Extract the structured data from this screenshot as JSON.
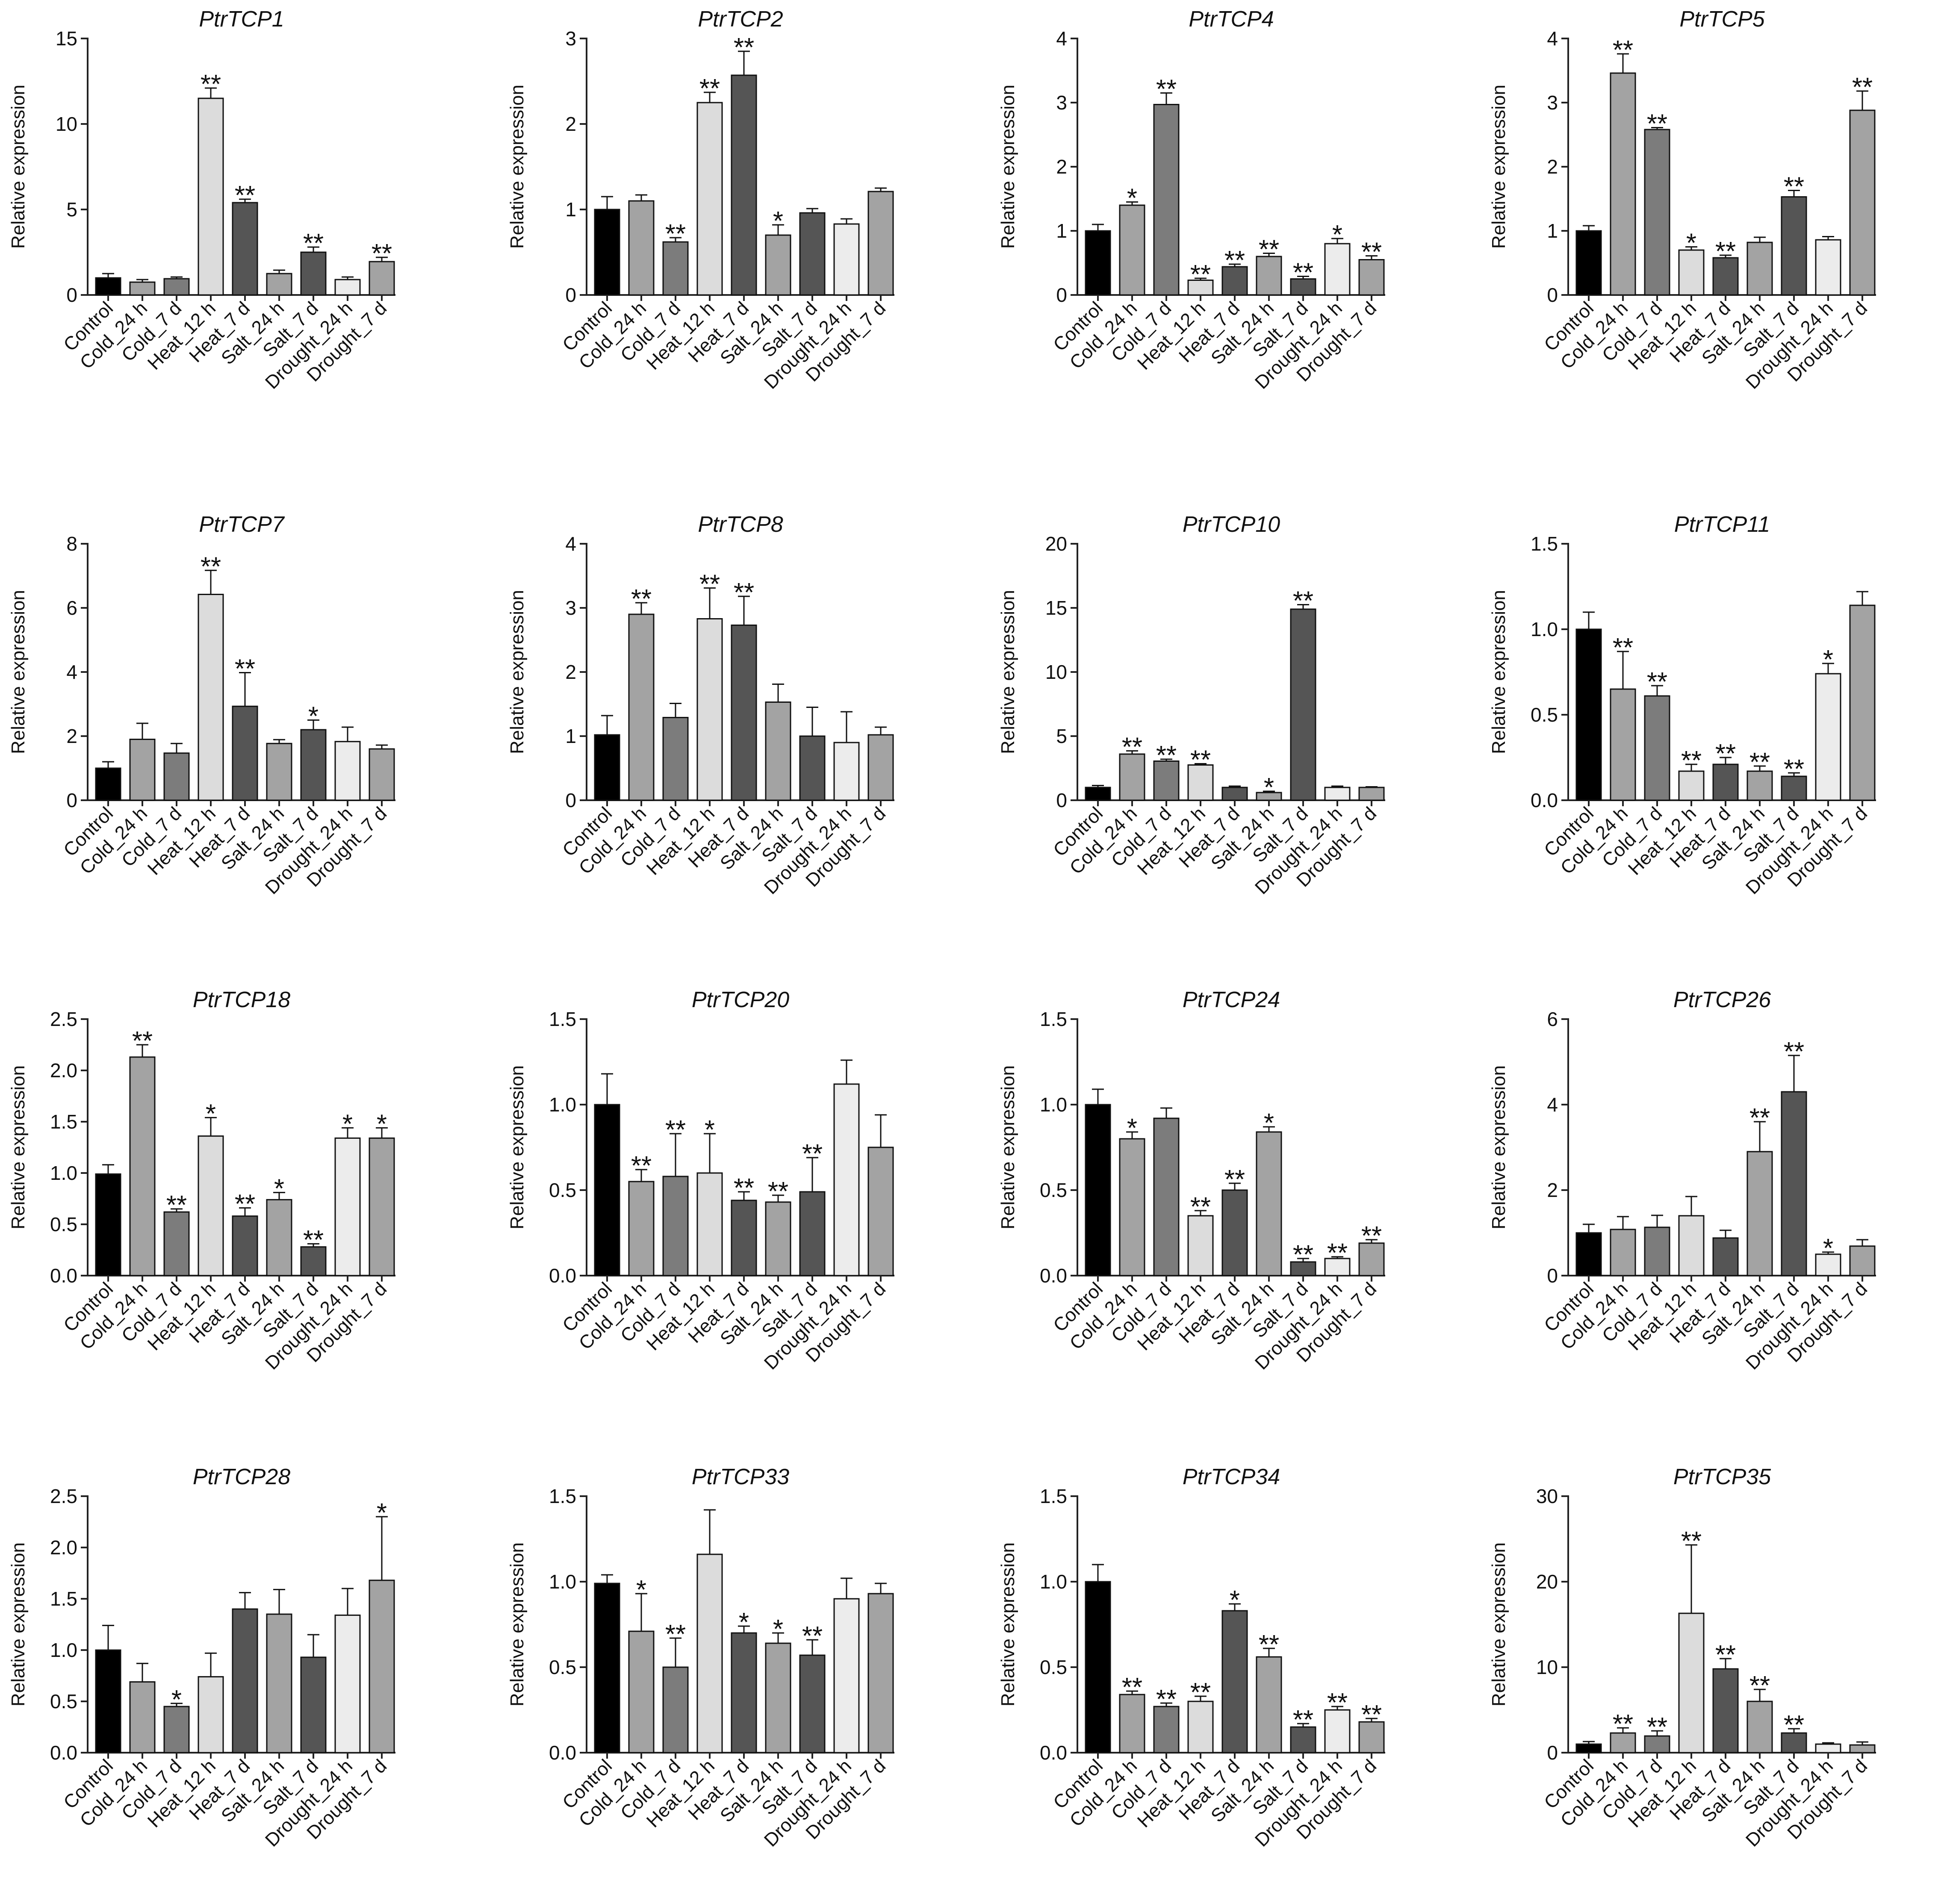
{
  "figure": {
    "ylabel": "Relative expression",
    "categories": [
      "Control",
      "Cold_24 h",
      "Cold_7 d",
      "Heat_12 h",
      "Heat_7 d",
      "Salt_24 h",
      "Salt_7 d",
      "Drought_24 h",
      "Drought_7 d"
    ],
    "bar_colors": [
      "#000000",
      "#a3a3a3",
      "#7c7c7c",
      "#dcdcdc",
      "#555555",
      "#a3a3a3",
      "#555555",
      "#ececec",
      "#a3a3a3"
    ]
  },
  "chart_data": [
    {
      "type": "bar",
      "title": "PtrTCP1",
      "ylabel": "Relative expression",
      "ylim": [
        0,
        15
      ],
      "yticks": [
        0,
        5,
        10,
        15
      ],
      "values": [
        1.0,
        0.75,
        0.95,
        11.5,
        5.4,
        1.25,
        2.5,
        0.9,
        1.95
      ],
      "errors": [
        0.25,
        0.15,
        0.1,
        0.6,
        0.2,
        0.2,
        0.3,
        0.15,
        0.25
      ],
      "sig": [
        "",
        "",
        "",
        "**",
        "**",
        "",
        "**",
        "",
        "**"
      ]
    },
    {
      "type": "bar",
      "title": "PtrTCP2",
      "ylabel": "Relative expression",
      "ylim": [
        0,
        3
      ],
      "yticks": [
        0,
        1,
        2,
        3
      ],
      "values": [
        1.0,
        1.1,
        0.62,
        2.25,
        2.57,
        0.7,
        0.96,
        0.83,
        1.21
      ],
      "errors": [
        0.15,
        0.07,
        0.05,
        0.12,
        0.28,
        0.12,
        0.05,
        0.06,
        0.04
      ],
      "sig": [
        "",
        "",
        "**",
        "**",
        "**",
        "*",
        "",
        "",
        ""
      ]
    },
    {
      "type": "bar",
      "title": "PtrTCP4",
      "ylabel": "Relative expression",
      "ylim": [
        0,
        4
      ],
      "yticks": [
        0,
        1,
        2,
        3,
        4
      ],
      "values": [
        1.0,
        1.4,
        2.97,
        0.23,
        0.44,
        0.6,
        0.25,
        0.8,
        0.55
      ],
      "errors": [
        0.1,
        0.05,
        0.18,
        0.03,
        0.04,
        0.05,
        0.04,
        0.08,
        0.06
      ],
      "sig": [
        "",
        "*",
        "**",
        "**",
        "**",
        "**",
        "**",
        "*",
        "**"
      ]
    },
    {
      "type": "bar",
      "title": "PtrTCP5",
      "ylabel": "Relative expression",
      "ylim": [
        0,
        4
      ],
      "yticks": [
        0,
        1,
        2,
        3,
        4
      ],
      "values": [
        1.0,
        3.46,
        2.58,
        0.7,
        0.58,
        0.82,
        1.53,
        0.86,
        2.88
      ],
      "errors": [
        0.08,
        0.3,
        0.03,
        0.05,
        0.04,
        0.08,
        0.1,
        0.05,
        0.3
      ],
      "sig": [
        "",
        "**",
        "**",
        "*",
        "**",
        "",
        "**",
        "",
        "**"
      ]
    },
    {
      "type": "bar",
      "title": "PtrTCP7",
      "ylabel": "Relative expression",
      "ylim": [
        0,
        8
      ],
      "yticks": [
        0,
        2,
        4,
        6,
        8
      ],
      "values": [
        1.0,
        1.9,
        1.47,
        6.42,
        2.93,
        1.77,
        2.2,
        1.83,
        1.6
      ],
      "errors": [
        0.2,
        0.5,
        0.3,
        0.75,
        1.05,
        0.12,
        0.3,
        0.45,
        0.12
      ],
      "sig": [
        "",
        "",
        "",
        "**",
        "**",
        "",
        "*",
        "",
        ""
      ]
    },
    {
      "type": "bar",
      "title": "PtrTCP8",
      "ylabel": "Relative expression",
      "ylim": [
        0,
        4
      ],
      "yticks": [
        0,
        1,
        2,
        3,
        4
      ],
      "values": [
        1.02,
        2.9,
        1.29,
        2.83,
        2.73,
        1.53,
        1.0,
        0.9,
        1.02
      ],
      "errors": [
        0.3,
        0.18,
        0.22,
        0.48,
        0.45,
        0.28,
        0.45,
        0.48,
        0.12
      ],
      "sig": [
        "",
        "**",
        "",
        "**",
        "**",
        "",
        "",
        "",
        ""
      ]
    },
    {
      "type": "bar",
      "title": "PtrTCP10",
      "ylabel": "Relative expression",
      "ylim": [
        0,
        20
      ],
      "yticks": [
        0,
        5,
        10,
        15,
        20
      ],
      "values": [
        1.0,
        3.6,
        3.05,
        2.75,
        1.0,
        0.6,
        14.9,
        1.0,
        1.0
      ],
      "errors": [
        0.15,
        0.25,
        0.15,
        0.1,
        0.1,
        0.1,
        0.35,
        0.1,
        0.05
      ],
      "sig": [
        "",
        "**",
        "**",
        "**",
        "",
        "*",
        "**",
        "",
        ""
      ]
    },
    {
      "type": "bar",
      "title": "PtrTCP11",
      "ylabel": "Relative expression",
      "ylim": [
        0,
        1.5
      ],
      "yticks": [
        0.0,
        0.5,
        1.0,
        1.5
      ],
      "values": [
        1.0,
        0.65,
        0.61,
        0.17,
        0.21,
        0.17,
        0.14,
        0.74,
        1.14
      ],
      "errors": [
        0.1,
        0.22,
        0.06,
        0.04,
        0.04,
        0.03,
        0.02,
        0.06,
        0.08
      ],
      "sig": [
        "",
        "**",
        "**",
        "**",
        "**",
        "**",
        "**",
        "*",
        ""
      ]
    },
    {
      "type": "bar",
      "title": "PtrTCP18",
      "ylabel": "Relative expression",
      "ylim": [
        0,
        2.5
      ],
      "yticks": [
        0.0,
        0.5,
        1.0,
        1.5,
        2.0,
        2.5
      ],
      "values": [
        0.99,
        2.13,
        0.62,
        1.36,
        0.58,
        0.74,
        0.28,
        1.34,
        1.34
      ],
      "errors": [
        0.09,
        0.12,
        0.03,
        0.18,
        0.08,
        0.07,
        0.03,
        0.1,
        0.1
      ],
      "sig": [
        "",
        "**",
        "**",
        "*",
        "**",
        "*",
        "**",
        "*",
        "*"
      ]
    },
    {
      "type": "bar",
      "title": "PtrTCP20",
      "ylabel": "Relative expression",
      "ylim": [
        0,
        1.5
      ],
      "yticks": [
        0.0,
        0.5,
        1.0,
        1.5
      ],
      "values": [
        1.0,
        0.55,
        0.58,
        0.6,
        0.44,
        0.43,
        0.49,
        1.12,
        0.75
      ],
      "errors": [
        0.18,
        0.07,
        0.25,
        0.23,
        0.05,
        0.04,
        0.2,
        0.14,
        0.19
      ],
      "sig": [
        "",
        "**",
        "**",
        "*",
        "**",
        "**",
        "**",
        "",
        ""
      ]
    },
    {
      "type": "bar",
      "title": "PtrTCP24",
      "ylabel": "Relative expression",
      "ylim": [
        0,
        1.5
      ],
      "yticks": [
        0.0,
        0.5,
        1.0,
        1.5
      ],
      "values": [
        1.0,
        0.8,
        0.92,
        0.35,
        0.5,
        0.84,
        0.08,
        0.1,
        0.19
      ],
      "errors": [
        0.09,
        0.04,
        0.06,
        0.03,
        0.04,
        0.03,
        0.02,
        0.01,
        0.02
      ],
      "sig": [
        "",
        "*",
        "",
        "**",
        "**",
        "*",
        "**",
        "**",
        "**"
      ]
    },
    {
      "type": "bar",
      "title": "PtrTCP26",
      "ylabel": "Relative expression",
      "ylim": [
        0,
        6
      ],
      "yticks": [
        0,
        2,
        4,
        6
      ],
      "values": [
        1.0,
        1.08,
        1.13,
        1.4,
        0.88,
        2.9,
        4.3,
        0.5,
        0.69
      ],
      "errors": [
        0.2,
        0.3,
        0.28,
        0.45,
        0.18,
        0.7,
        0.85,
        0.05,
        0.15
      ],
      "sig": [
        "",
        "",
        "",
        "",
        "",
        "**",
        "**",
        "*",
        ""
      ]
    },
    {
      "type": "bar",
      "title": "PtrTCP28",
      "ylabel": "Relative expression",
      "ylim": [
        0,
        2.5
      ],
      "yticks": [
        0.0,
        0.5,
        1.0,
        1.5,
        2.0,
        2.5
      ],
      "values": [
        1.0,
        0.69,
        0.45,
        0.74,
        1.4,
        1.35,
        0.93,
        1.34,
        1.68
      ],
      "errors": [
        0.24,
        0.18,
        0.03,
        0.23,
        0.16,
        0.24,
        0.22,
        0.26,
        0.62
      ],
      "sig": [
        "",
        "",
        "*",
        "",
        "",
        "",
        "",
        "",
        "*"
      ]
    },
    {
      "type": "bar",
      "title": "PtrTCP33",
      "ylabel": "Relative expression",
      "ylim": [
        0,
        1.5
      ],
      "yticks": [
        0.0,
        0.5,
        1.0,
        1.5
      ],
      "values": [
        0.99,
        0.71,
        0.5,
        1.16,
        0.7,
        0.64,
        0.57,
        0.9,
        0.93
      ],
      "errors": [
        0.05,
        0.22,
        0.17,
        0.26,
        0.04,
        0.06,
        0.09,
        0.12,
        0.06
      ],
      "sig": [
        "",
        "*",
        "**",
        "",
        "*",
        "*",
        "**",
        "",
        ""
      ]
    },
    {
      "type": "bar",
      "title": "PtrTCP34",
      "ylabel": "Relative expression",
      "ylim": [
        0,
        1.5
      ],
      "yticks": [
        0.0,
        0.5,
        1.0,
        1.5
      ],
      "values": [
        1.0,
        0.34,
        0.27,
        0.3,
        0.83,
        0.56,
        0.15,
        0.25,
        0.18
      ],
      "errors": [
        0.1,
        0.02,
        0.02,
        0.03,
        0.04,
        0.05,
        0.02,
        0.02,
        0.02
      ],
      "sig": [
        "",
        "**",
        "**",
        "**",
        "*",
        "**",
        "**",
        "**",
        "**"
      ]
    },
    {
      "type": "bar",
      "title": "PtrTCP35",
      "ylabel": "Relative expression",
      "ylim": [
        0,
        30
      ],
      "yticks": [
        0,
        10,
        20,
        30
      ],
      "values": [
        1.0,
        2.3,
        1.95,
        16.3,
        9.8,
        6.0,
        2.3,
        1.0,
        0.9
      ],
      "errors": [
        0.3,
        0.6,
        0.6,
        8.0,
        1.2,
        1.4,
        0.5,
        0.15,
        0.35
      ],
      "sig": [
        "",
        "**",
        "**",
        "**",
        "**",
        "**",
        "**",
        "",
        ""
      ]
    }
  ]
}
